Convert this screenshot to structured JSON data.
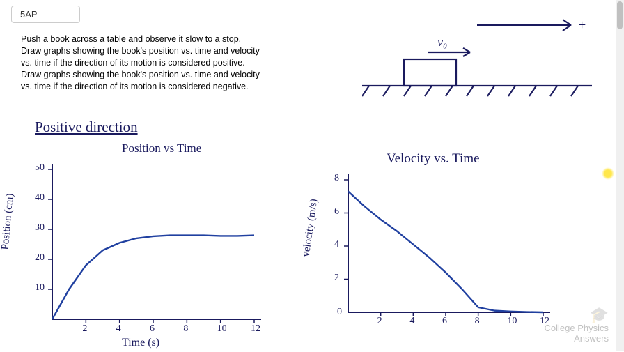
{
  "problem": {
    "tag": "5AP",
    "text_lines": [
      "Push a book across a table and observe it slow to a stop.",
      "Draw graphs showing the book's position vs. time and velocity",
      "vs. time if the direction of its motion is considered positive.",
      "Draw graphs showing the book's position vs. time and velocity",
      "vs. time if the direction of its motion is considered negative."
    ]
  },
  "diagram": {
    "velocity_label": "v₀",
    "plus_label": "+",
    "stroke_color": "#1a1a5e",
    "stroke_width": 2.2
  },
  "heading": "Positive direction",
  "chart1": {
    "type": "line",
    "title": "Position vs Time",
    "xlabel": "Time (s)",
    "ylabel": "Position (cm)",
    "stroke_color": "#1a1a5e",
    "line_color": "#2040a0",
    "line_width": 2.4,
    "xlim": [
      0,
      12
    ],
    "xtick_step": 2,
    "ylim": [
      0,
      50
    ],
    "ytick_step": 10,
    "xticks": [
      "2",
      "4",
      "6",
      "8",
      "10",
      "12"
    ],
    "yticks": [
      "10",
      "20",
      "30",
      "40",
      "50"
    ],
    "points": [
      [
        0,
        0
      ],
      [
        1,
        10
      ],
      [
        2,
        18
      ],
      [
        3,
        23
      ],
      [
        4,
        25.5
      ],
      [
        5,
        27
      ],
      [
        6,
        27.7
      ],
      [
        7,
        28
      ],
      [
        8,
        28
      ],
      [
        9,
        28
      ],
      [
        10,
        27.8
      ],
      [
        11,
        27.8
      ],
      [
        12,
        28
      ]
    ]
  },
  "chart2": {
    "type": "line",
    "title": "Velocity vs. Time",
    "xlabel": "",
    "ylabel": "velocity (m/s)",
    "stroke_color": "#1a1a5e",
    "line_color": "#2040a0",
    "line_width": 2.4,
    "xlim": [
      0,
      12
    ],
    "xtick_step": 2,
    "ylim": [
      0,
      8
    ],
    "ytick_step": 2,
    "xticks": [
      "2",
      "4",
      "6",
      "8",
      "10",
      "12"
    ],
    "yticks": [
      "2",
      "4",
      "6",
      "8"
    ],
    "points": [
      [
        0,
        7.3
      ],
      [
        1,
        6.4
      ],
      [
        2,
        5.6
      ],
      [
        3,
        4.9
      ],
      [
        4,
        4.1
      ],
      [
        5,
        3.3
      ],
      [
        6,
        2.4
      ],
      [
        7,
        1.4
      ],
      [
        8,
        0.3
      ],
      [
        9,
        0.1
      ],
      [
        10,
        0.05
      ],
      [
        11,
        0.02
      ],
      [
        12,
        0
      ]
    ]
  },
  "watermark": {
    "line1": "College Physics",
    "line2": "Answers"
  }
}
